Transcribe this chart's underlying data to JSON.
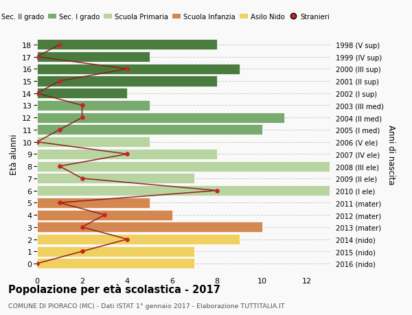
{
  "ages": [
    18,
    17,
    16,
    15,
    14,
    13,
    12,
    11,
    10,
    9,
    8,
    7,
    6,
    5,
    4,
    3,
    2,
    1,
    0
  ],
  "bar_values": [
    8,
    5,
    9,
    8,
    4,
    5,
    11,
    10,
    5,
    8,
    13,
    7,
    13,
    5,
    6,
    10,
    9,
    7,
    7
  ],
  "right_labels_by_age": {
    "18": "1998 (V sup)",
    "17": "1999 (IV sup)",
    "16": "2000 (III sup)",
    "15": "2001 (II sup)",
    "14": "2002 (I sup)",
    "13": "2003 (III med)",
    "12": "2004 (II med)",
    "11": "2005 (I med)",
    "10": "2006 (V ele)",
    "9": "2007 (IV ele)",
    "8": "2008 (III ele)",
    "7": "2009 (II ele)",
    "6": "2010 (I ele)",
    "5": "2011 (mater)",
    "4": "2012 (mater)",
    "3": "2013 (mater)",
    "2": "2014 (nido)",
    "1": "2015 (nido)",
    "0": "2016 (nido)"
  },
  "bar_colors_by_age": {
    "18": "#4a7c3f",
    "17": "#4a7c3f",
    "16": "#4a7c3f",
    "15": "#4a7c3f",
    "14": "#4a7c3f",
    "13": "#7aab6e",
    "12": "#7aab6e",
    "11": "#7aab6e",
    "10": "#b8d4a0",
    "9": "#b8d4a0",
    "8": "#b8d4a0",
    "7": "#b8d4a0",
    "6": "#b8d4a0",
    "5": "#d4874e",
    "4": "#d4874e",
    "3": "#d4874e",
    "2": "#f0d060",
    "1": "#f0d060",
    "0": "#f0d060"
  },
  "stranieri_by_age": {
    "18": 1,
    "17": 0,
    "16": 4,
    "15": 1,
    "14": 0,
    "13": 2,
    "12": 2,
    "11": 1,
    "10": 0,
    "9": 4,
    "8": 1,
    "7": 2,
    "6": 8,
    "5": 1,
    "4": 3,
    "3": 2,
    "2": 4,
    "1": 2,
    "0": 0
  },
  "legend_labels": [
    "Sec. II grado",
    "Sec. I grado",
    "Scuola Primaria",
    "Scuola Infanzia",
    "Asilo Nido",
    "Stranieri"
  ],
  "legend_colors": [
    "#4a7c3f",
    "#7aab6e",
    "#b8d4a0",
    "#d4874e",
    "#f0d060",
    "#cc2222"
  ],
  "ylabel_left": "Età alunni",
  "ylabel_right": "Anni di nascita",
  "title": "Popolazione per età scolastica - 2017",
  "subtitle": "COMUNE DI PIORACO (MC) - Dati ISTAT 1° gennaio 2017 - Elaborazione TUTTITALIA.IT",
  "xlim": [
    0,
    13
  ],
  "ylim": [
    -0.6,
    18.6
  ],
  "xticks": [
    0,
    2,
    4,
    6,
    8,
    10,
    12
  ],
  "bg_color": "#f9f9f9",
  "grid_color": "#cccccc",
  "stranieri_line_color": "#8b1a1a",
  "stranieri_dot_color": "#cc2222"
}
